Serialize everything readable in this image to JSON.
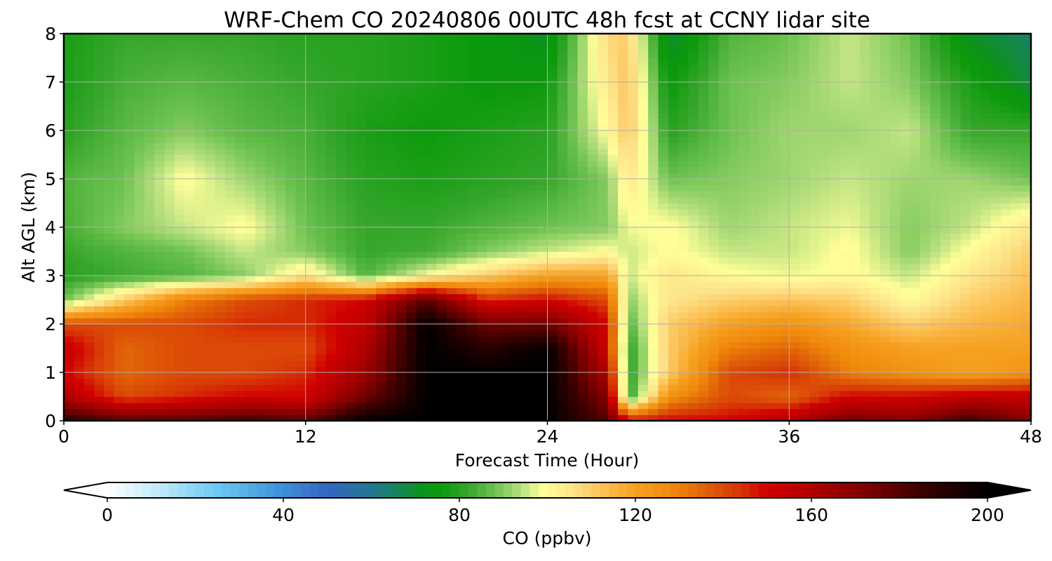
{
  "chart_data": {
    "type": "heatmap",
    "title": "WRF-Chem CO  20240806 00UTC 48h fcst at CCNY lidar site",
    "xlabel": "Forecast Time (Hour)",
    "ylabel": "Alt AGL (km)",
    "xlim": [
      0,
      48
    ],
    "ylim": [
      0,
      8
    ],
    "xticks": [
      0,
      12,
      24,
      36,
      48
    ],
    "yticks": [
      0,
      1,
      2,
      3,
      4,
      5,
      6,
      7,
      8
    ],
    "grid": true,
    "colorbar": {
      "label": "CO  (ppbv)",
      "min": 0,
      "max": 200,
      "ticks": [
        0,
        40,
        80,
        120,
        160,
        200
      ],
      "extend": "both",
      "orientation": "horizontal",
      "placement": "bottom",
      "colormap": [
        [
          0,
          "#ffffff"
        ],
        [
          12,
          "#bfe8fa"
        ],
        [
          25,
          "#6cc8f2"
        ],
        [
          40,
          "#3c8fd8"
        ],
        [
          50,
          "#3366c4"
        ],
        [
          62,
          "#1f7a86"
        ],
        [
          72,
          "#0b9415"
        ],
        [
          76,
          "#0c9a0c"
        ],
        [
          82,
          "#36a62b"
        ],
        [
          88,
          "#6cc24e"
        ],
        [
          94,
          "#b8e07e"
        ],
        [
          99,
          "#ffff99"
        ],
        [
          106,
          "#fde28a"
        ],
        [
          113,
          "#fbbf52"
        ],
        [
          120,
          "#f6a021"
        ],
        [
          128,
          "#f08a0c"
        ],
        [
          136,
          "#e06108"
        ],
        [
          143,
          "#d83a06"
        ],
        [
          150,
          "#d00000"
        ],
        [
          160,
          "#b00000"
        ],
        [
          172,
          "#7f0000"
        ],
        [
          185,
          "#3d0000"
        ],
        [
          200,
          "#000000"
        ]
      ]
    },
    "x": [
      0,
      3,
      6,
      9,
      12,
      15,
      18,
      21,
      24,
      27,
      28,
      30,
      33,
      36,
      39,
      42,
      45,
      48
    ],
    "y": [
      0,
      0.5,
      1,
      1.5,
      2,
      2.5,
      3,
      3.5,
      4,
      5,
      6,
      7,
      8
    ],
    "values": [
      [
        190,
        180,
        180,
        185,
        180,
        200,
        200,
        200,
        200,
        180,
        150,
        150,
        150,
        160,
        175,
        170,
        185,
        170
      ],
      [
        160,
        140,
        145,
        150,
        150,
        175,
        200,
        200,
        200,
        170,
        80,
        125,
        140,
        135,
        150,
        150,
        155,
        155
      ],
      [
        150,
        135,
        140,
        140,
        145,
        165,
        200,
        200,
        200,
        160,
        80,
        110,
        140,
        145,
        130,
        125,
        120,
        125
      ],
      [
        155,
        135,
        140,
        140,
        140,
        160,
        200,
        190,
        200,
        150,
        80,
        110,
        130,
        135,
        125,
        120,
        120,
        120
      ],
      [
        140,
        140,
        140,
        145,
        145,
        155,
        200,
        175,
        175,
        150,
        85,
        110,
        120,
        125,
        118,
        110,
        115,
        118
      ],
      [
        88,
        110,
        130,
        140,
        145,
        150,
        180,
        145,
        150,
        140,
        90,
        105,
        110,
        112,
        110,
        100,
        110,
        115
      ],
      [
        80,
        83,
        85,
        90,
        105,
        85,
        99,
        110,
        120,
        120,
        95,
        105,
        100,
        98,
        100,
        95,
        105,
        112
      ],
      [
        82,
        85,
        88,
        95,
        90,
        82,
        83,
        90,
        95,
        100,
        95,
        100,
        95,
        95,
        100,
        90,
        100,
        110
      ],
      [
        84,
        90,
        95,
        100,
        88,
        82,
        82,
        85,
        88,
        90,
        98,
        100,
        92,
        95,
        98,
        90,
        95,
        105
      ],
      [
        85,
        88,
        100,
        92,
        86,
        80,
        78,
        80,
        82,
        90,
        105,
        88,
        90,
        92,
        95,
        92,
        92,
        88
      ],
      [
        80,
        86,
        90,
        86,
        84,
        78,
        76,
        78,
        80,
        100,
        112,
        80,
        88,
        92,
        92,
        95,
        82,
        82
      ],
      [
        78,
        84,
        86,
        84,
        82,
        80,
        78,
        75,
        76,
        105,
        112,
        75,
        88,
        90,
        95,
        90,
        78,
        68
      ],
      [
        78,
        82,
        82,
        82,
        80,
        80,
        78,
        75,
        70,
        108,
        110,
        68,
        85,
        88,
        95,
        88,
        70,
        65
      ]
    ]
  }
}
